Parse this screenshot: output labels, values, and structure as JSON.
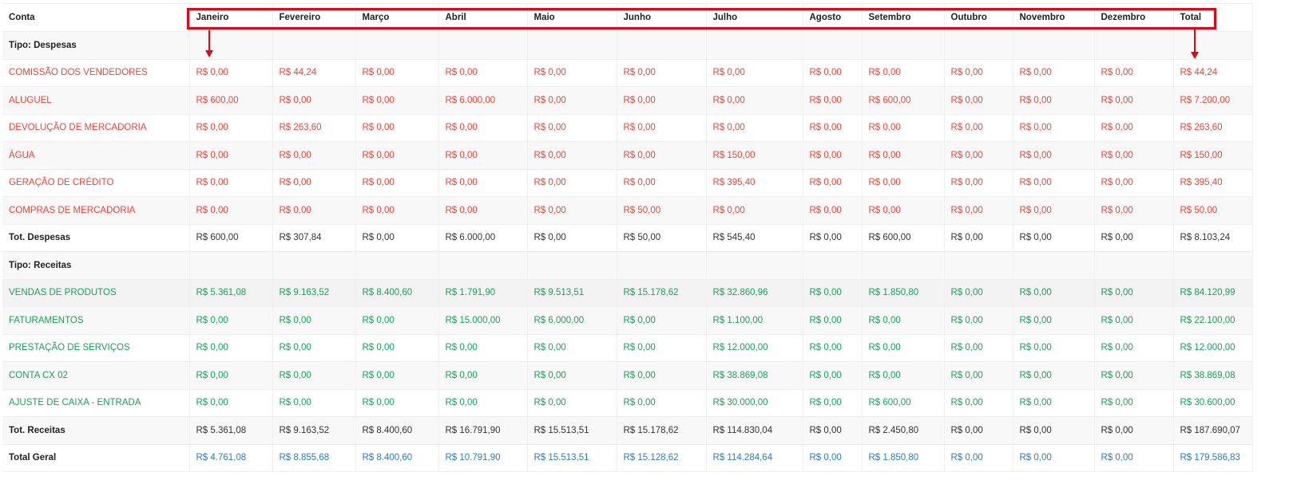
{
  "colors": {
    "expense": "#e5473a",
    "revenue": "#17a05d",
    "total_geral": "#2b7bc0",
    "annotation": "#e30613"
  },
  "header": [
    "Conta",
    "Janeiro",
    "Fevereiro",
    "Março",
    "Abril",
    "Maio",
    "Junho",
    "Julho",
    "Agosto",
    "Setembro",
    "Outubro",
    "Novembro",
    "Dezembro",
    "Total"
  ],
  "rows": [
    {
      "type": "group",
      "label": "Tipo: Despesas"
    },
    {
      "type": "expense",
      "label": "COMISSÃO DOS VENDEDORES",
      "values": [
        "R$ 0,00",
        "R$ 44,24",
        "R$ 0,00",
        "R$ 0,00",
        "R$ 0,00",
        "R$ 0,00",
        "R$ 0,00",
        "R$ 0,00",
        "R$ 0,00",
        "R$ 0,00",
        "R$ 0,00",
        "R$ 0,00",
        "R$ 44,24"
      ]
    },
    {
      "type": "expense",
      "label": "ALUGUEL",
      "values": [
        "R$ 600,00",
        "R$ 0,00",
        "R$ 0,00",
        "R$ 6.000,00",
        "R$ 0,00",
        "R$ 0,00",
        "R$ 0,00",
        "R$ 0,00",
        "R$ 600,00",
        "R$ 0,00",
        "R$ 0,00",
        "R$ 0,00",
        "R$ 7.200,00"
      ]
    },
    {
      "type": "expense",
      "label": "DEVOLUÇÃO DE MERCADORIA",
      "values": [
        "R$ 0,00",
        "R$ 263,60",
        "R$ 0,00",
        "R$ 0,00",
        "R$ 0,00",
        "R$ 0,00",
        "R$ 0,00",
        "R$ 0,00",
        "R$ 0,00",
        "R$ 0,00",
        "R$ 0,00",
        "R$ 0,00",
        "R$ 263,60"
      ]
    },
    {
      "type": "expense",
      "label": "ÁGUA",
      "values": [
        "R$ 0,00",
        "R$ 0,00",
        "R$ 0,00",
        "R$ 0,00",
        "R$ 0,00",
        "R$ 0,00",
        "R$ 150,00",
        "R$ 0,00",
        "R$ 0,00",
        "R$ 0,00",
        "R$ 0,00",
        "R$ 0,00",
        "R$ 150,00"
      ]
    },
    {
      "type": "expense",
      "label": "GERAÇÃO DE CRÉDITO",
      "values": [
        "R$ 0,00",
        "R$ 0,00",
        "R$ 0,00",
        "R$ 0,00",
        "R$ 0,00",
        "R$ 0,00",
        "R$ 395,40",
        "R$ 0,00",
        "R$ 0,00",
        "R$ 0,00",
        "R$ 0,00",
        "R$ 0,00",
        "R$ 395,40"
      ]
    },
    {
      "type": "expense",
      "label": "COMPRAS DE MERCADORIA",
      "values": [
        "R$ 0,00",
        "R$ 0,00",
        "R$ 0,00",
        "R$ 0,00",
        "R$ 0,00",
        "R$ 50,00",
        "R$ 0,00",
        "R$ 0,00",
        "R$ 0,00",
        "R$ 0,00",
        "R$ 0,00",
        "R$ 0,00",
        "R$ 50,00"
      ]
    },
    {
      "type": "subtotal",
      "label": "Tot. Despesas",
      "values": [
        "R$ 600,00",
        "R$ 307,84",
        "R$ 0,00",
        "R$ 6.000,00",
        "R$ 0,00",
        "R$ 50,00",
        "R$ 545,40",
        "R$ 0,00",
        "R$ 600,00",
        "R$ 0,00",
        "R$ 0,00",
        "R$ 0,00",
        "R$ 8.103,24"
      ]
    },
    {
      "type": "group",
      "label": "Tipo: Receitas"
    },
    {
      "type": "revenue",
      "label": "VENDAS DE PRODUTOS",
      "values": [
        "R$ 5.361,08",
        "R$ 9.163,52",
        "R$ 8.400,60",
        "R$ 1.791,90",
        "R$ 9.513,51",
        "R$ 15.178,62",
        "R$ 32.860,96",
        "R$ 0,00",
        "R$ 1.850,80",
        "R$ 0,00",
        "R$ 0,00",
        "R$ 0,00",
        "R$ 84.120,99"
      ]
    },
    {
      "type": "revenue",
      "label": "FATURAMENTOS",
      "values": [
        "R$ 0,00",
        "R$ 0,00",
        "R$ 0,00",
        "R$ 15.000,00",
        "R$ 6.000,00",
        "R$ 0,00",
        "R$ 1.100,00",
        "R$ 0,00",
        "R$ 0,00",
        "R$ 0,00",
        "R$ 0,00",
        "R$ 0,00",
        "R$ 22.100,00"
      ]
    },
    {
      "type": "revenue",
      "label": "PRESTAÇÃO DE SERVIÇOS",
      "values": [
        "R$ 0,00",
        "R$ 0,00",
        "R$ 0,00",
        "R$ 0,00",
        "R$ 0,00",
        "R$ 0,00",
        "R$ 12.000,00",
        "R$ 0,00",
        "R$ 0,00",
        "R$ 0,00",
        "R$ 0,00",
        "R$ 0,00",
        "R$ 12.000,00"
      ]
    },
    {
      "type": "revenue",
      "label": "CONTA CX 02",
      "values": [
        "R$ 0,00",
        "R$ 0,00",
        "R$ 0,00",
        "R$ 0,00",
        "R$ 0,00",
        "R$ 0,00",
        "R$ 38.869,08",
        "R$ 0,00",
        "R$ 0,00",
        "R$ 0,00",
        "R$ 0,00",
        "R$ 0,00",
        "R$ 38.869,08"
      ]
    },
    {
      "type": "revenue",
      "label": "AJUSTE DE CAIXA - ENTRADA",
      "values": [
        "R$ 0,00",
        "R$ 0,00",
        "R$ 0,00",
        "R$ 0,00",
        "R$ 0,00",
        "R$ 0,00",
        "R$ 30.000,00",
        "R$ 0,00",
        "R$ 600,00",
        "R$ 0,00",
        "R$ 0,00",
        "R$ 0,00",
        "R$ 30.600,00"
      ]
    },
    {
      "type": "subtotal",
      "label": "Tot. Receitas",
      "values": [
        "R$ 5.361,08",
        "R$ 9.163,52",
        "R$ 8.400,60",
        "R$ 16.791,90",
        "R$ 15.513,51",
        "R$ 15.178,62",
        "R$ 114.830,04",
        "R$ 0,00",
        "R$ 2.450,80",
        "R$ 0,00",
        "R$ 0,00",
        "R$ 0,00",
        "R$ 187.690,07"
      ]
    },
    {
      "type": "grand",
      "label": "Total Geral",
      "values": [
        "R$ 4.761,08",
        "R$ 8.855,68",
        "R$ 8.400,60",
        "R$ 10.791,90",
        "R$ 15.513,51",
        "R$ 15.128,62",
        "R$ 114.284,64",
        "R$ 0,00",
        "R$ 1.850,80",
        "R$ 0,00",
        "R$ 0,00",
        "R$ 0,00",
        "R$ 179.586,83"
      ]
    }
  ]
}
